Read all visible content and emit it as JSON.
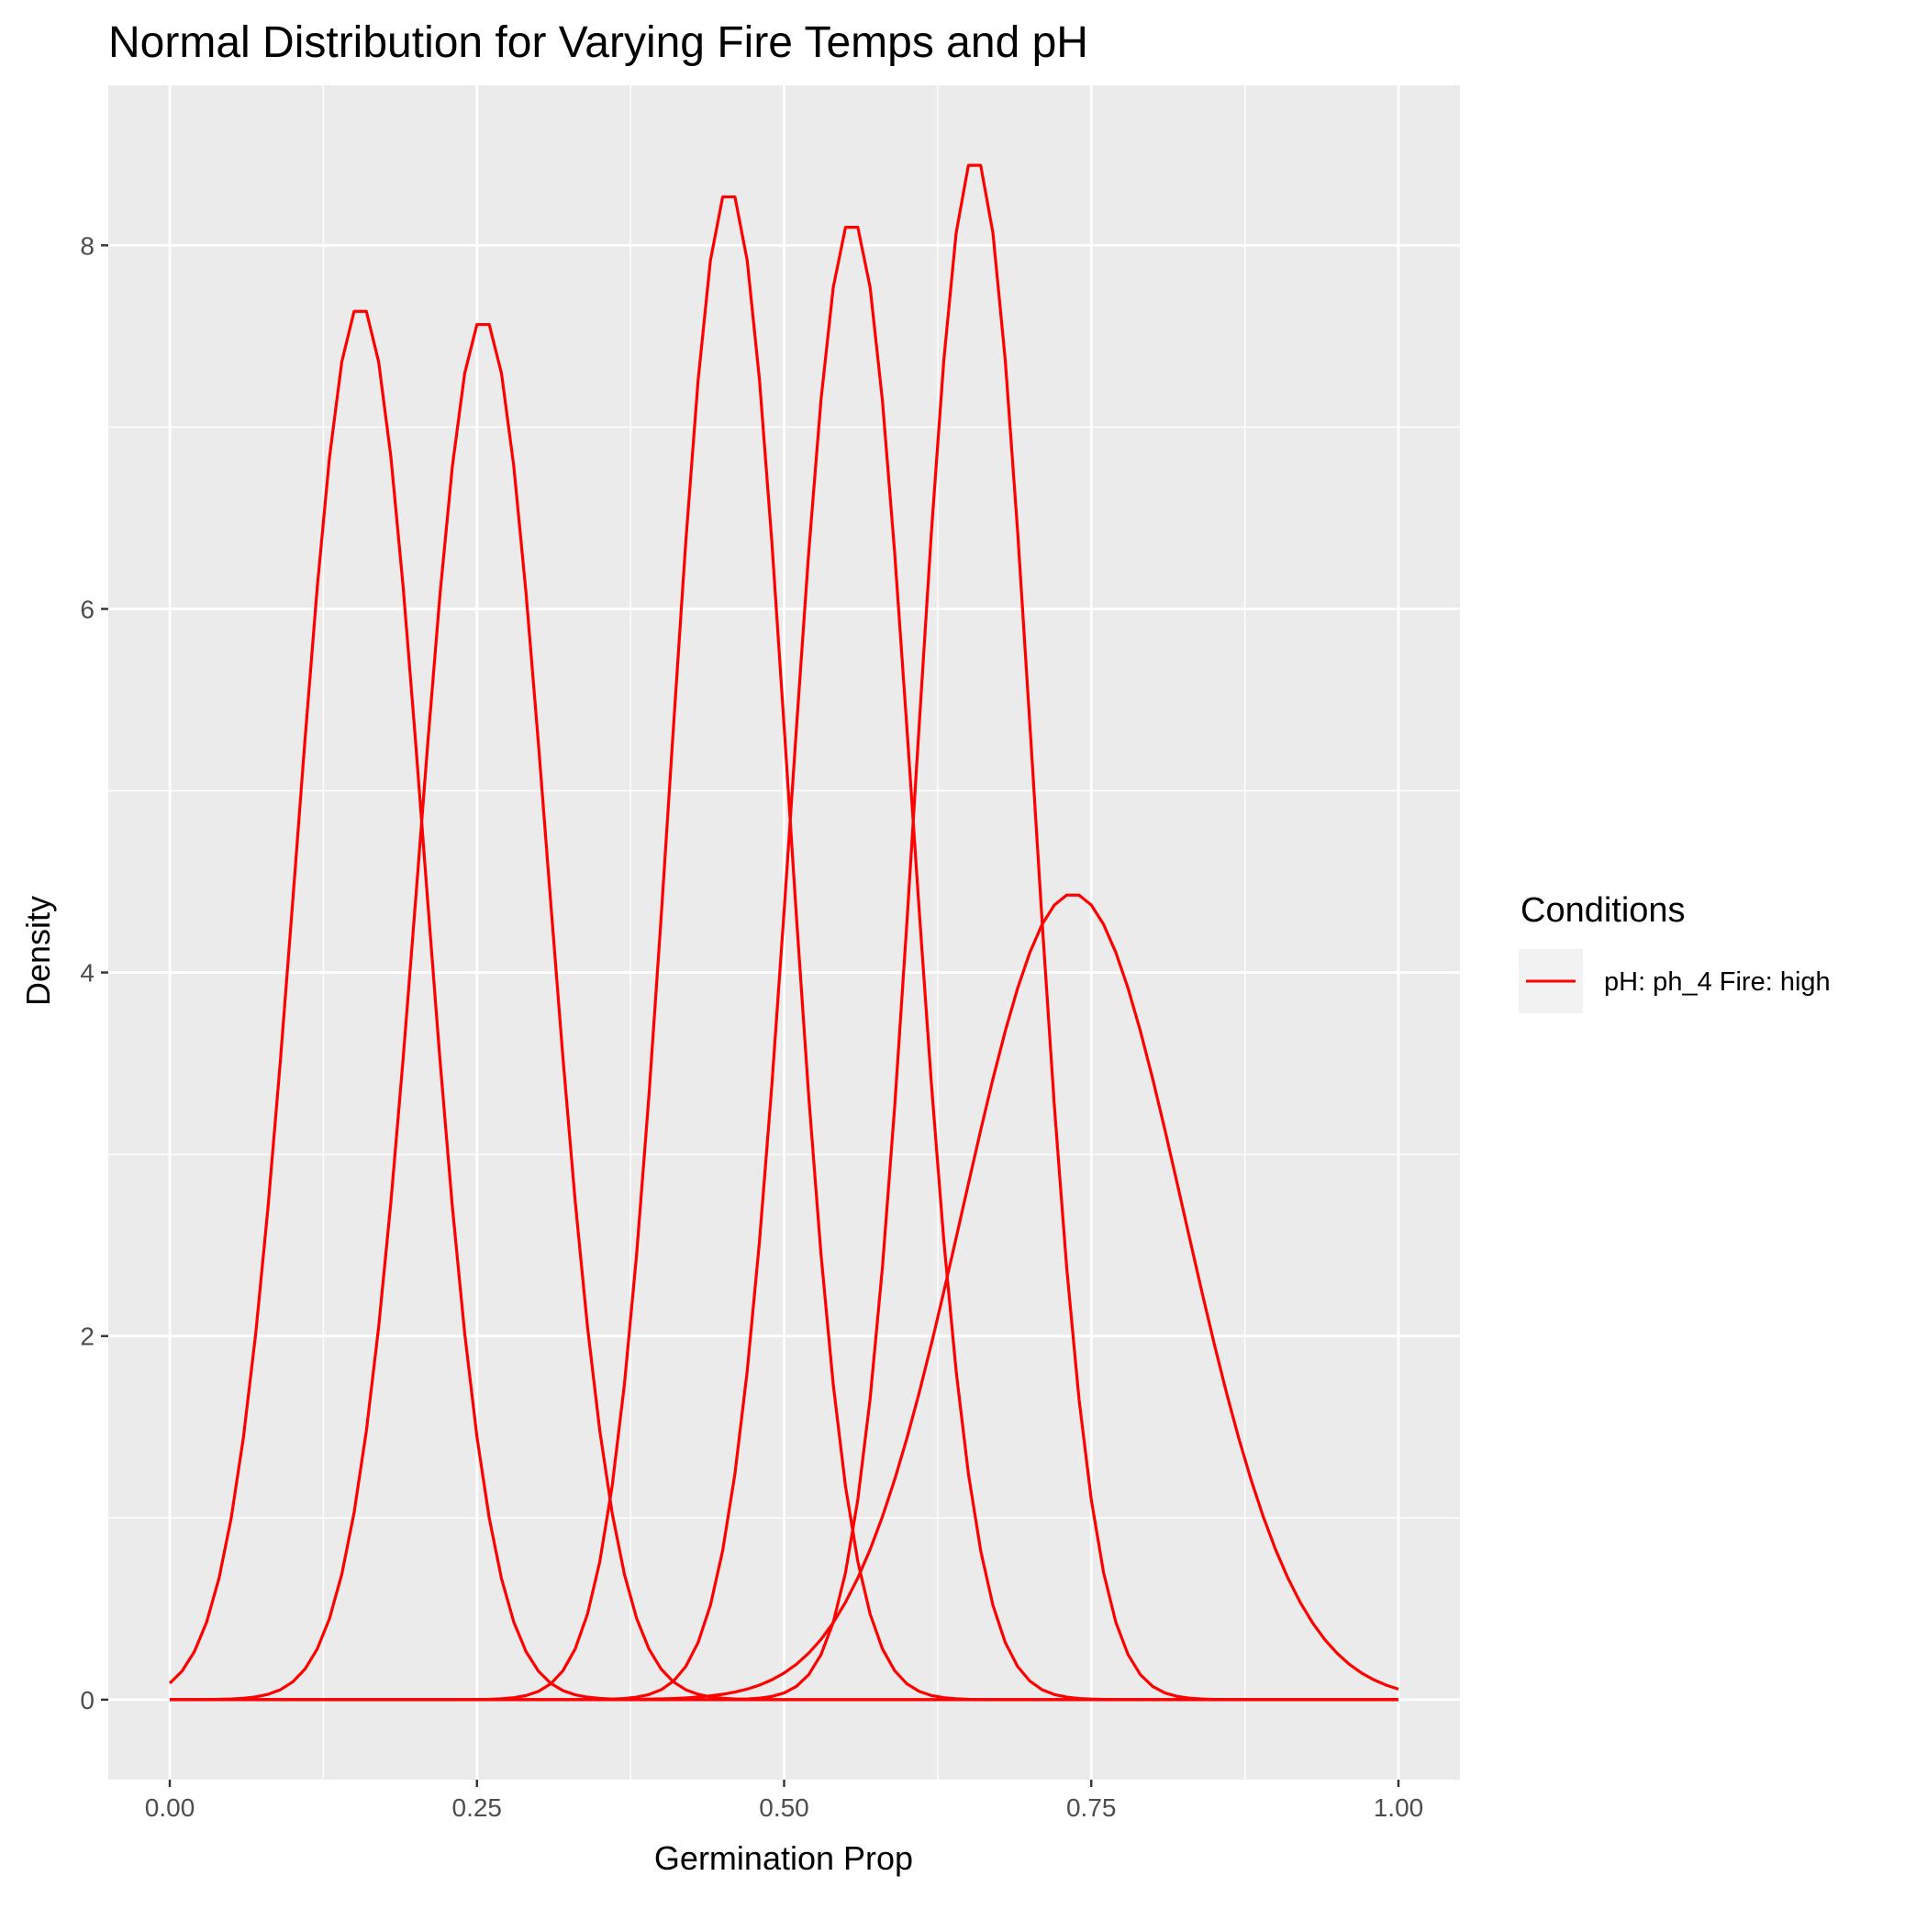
{
  "chart_data": {
    "type": "line",
    "title": "Normal Distribution for Varying Fire Temps and pH",
    "xlabel": "Germination Prop",
    "ylabel": "Density",
    "xlim": [
      0,
      1
    ],
    "ylim": [
      -0.44,
      8.88
    ],
    "x_ticks": [
      {
        "value": 0,
        "label": "0.00"
      },
      {
        "value": 0.25,
        "label": "0.25"
      },
      {
        "value": 0.5,
        "label": "0.50"
      },
      {
        "value": 0.75,
        "label": "0.75"
      },
      {
        "value": 1,
        "label": "1.00"
      }
    ],
    "y_ticks": [
      {
        "value": 0,
        "label": "0"
      },
      {
        "value": 2,
        "label": "2"
      },
      {
        "value": 4,
        "label": "4"
      },
      {
        "value": 6,
        "label": "6"
      },
      {
        "value": 8,
        "label": "8"
      }
    ],
    "grid": true,
    "legend": {
      "title": "Conditions",
      "position": "right",
      "entries": [
        {
          "label": "pH: ph_4 Fire: high",
          "color": "#FF0000"
        }
      ]
    },
    "x_step": 0.01,
    "series": [
      {
        "color": "#FF0000",
        "mean": 0.155,
        "sd": 0.052
      },
      {
        "color": "#FF0000",
        "mean": 0.255,
        "sd": 0.0525
      },
      {
        "color": "#FF0000",
        "mean": 0.455,
        "sd": 0.048
      },
      {
        "color": "#FF0000",
        "mean": 0.555,
        "sd": 0.049
      },
      {
        "color": "#FF0000",
        "mean": 0.655,
        "sd": 0.047
      },
      {
        "color": "#FF0000",
        "mean": 0.735,
        "sd": 0.09
      }
    ]
  }
}
